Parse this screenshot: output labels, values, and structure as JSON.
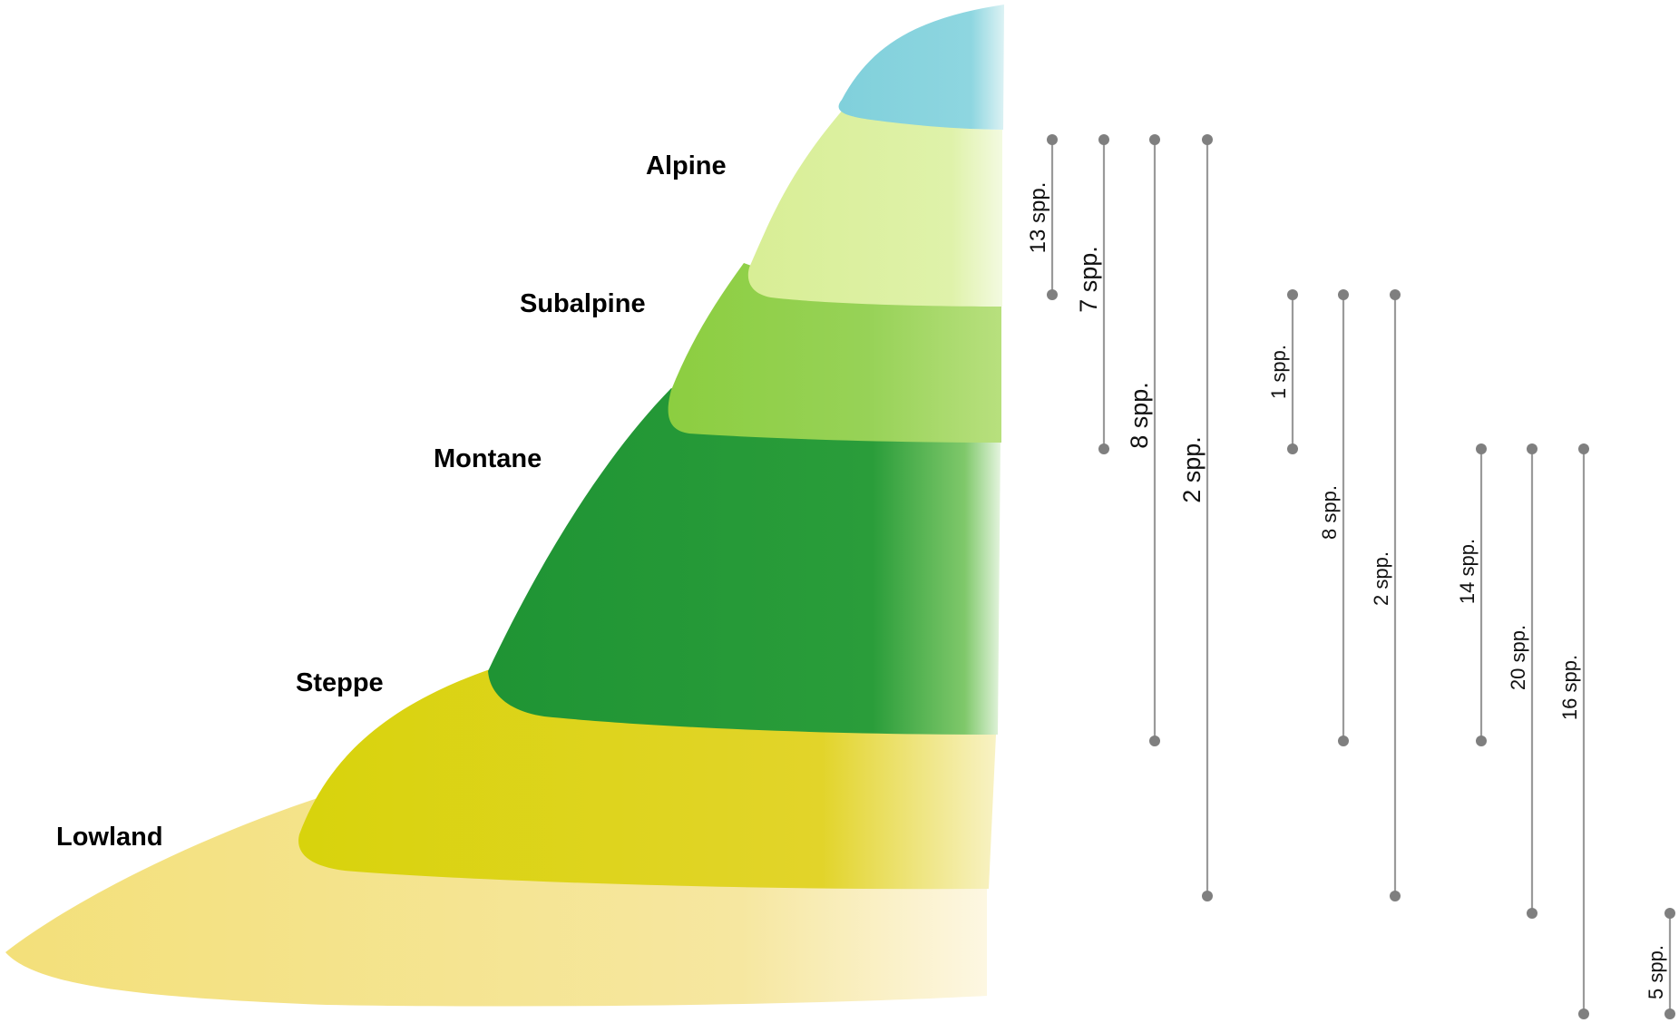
{
  "zones": [
    {
      "id": "alpine",
      "label": "Alpine",
      "color": "#dcef9e"
    },
    {
      "id": "subalpine",
      "label": "Subalpine",
      "color": "#8fcf48"
    },
    {
      "id": "montane",
      "label": "Montane",
      "color": "#229636"
    },
    {
      "id": "steppe",
      "label": "Steppe",
      "color": "#dcd512"
    },
    {
      "id": "lowland",
      "label": "Lowland",
      "color": "#f2e27a"
    }
  ],
  "nival_color": "#86d3dd",
  "ranges": [
    {
      "label": "13 spp."
    },
    {
      "label": "7 spp."
    },
    {
      "label": "8 spp."
    },
    {
      "label": "2 spp."
    },
    {
      "label": "1 spp."
    },
    {
      "label": "8 spp."
    },
    {
      "label": "2 spp."
    },
    {
      "label": "14 spp."
    },
    {
      "label": "20 spp."
    },
    {
      "label": "16 spp."
    },
    {
      "label": "5 spp."
    }
  ]
}
